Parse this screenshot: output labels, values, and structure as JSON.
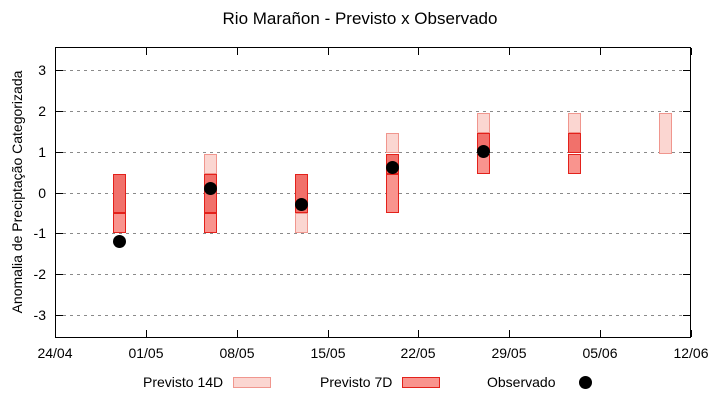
{
  "chart_data": {
    "type": "range-bar + scatter",
    "title": "Rio Marañon - Previsto x Observado",
    "ylabel": "Anomalia de Preciptação Categorizada",
    "xlabel": "",
    "ylim": [
      -3.55,
      3.55
    ],
    "yticks": [
      3,
      2,
      1,
      0,
      -1,
      -2,
      -3
    ],
    "x_span_days": 49,
    "xticks": [
      {
        "day": 0,
        "label": "24/04"
      },
      {
        "day": 7,
        "label": "01/05"
      },
      {
        "day": 14,
        "label": "08/05"
      },
      {
        "day": 21,
        "label": "15/05"
      },
      {
        "day": 28,
        "label": "22/05"
      },
      {
        "day": 35,
        "label": "29/05"
      },
      {
        "day": 42,
        "label": "05/06"
      },
      {
        "day": 49,
        "label": "12/06"
      }
    ],
    "grid": {
      "horizontal": true,
      "style": "dashed",
      "color": "#8a8a8a"
    },
    "bars": [
      {
        "label": "29/04",
        "day": 5,
        "previsto_14d": [
          -0.5,
          0.45
        ],
        "previsto_7d": [
          -1.0,
          0.45
        ],
        "observado": -1.2,
        "segments": [
          {
            "from": -0.5,
            "to": 0.45,
            "shade": "overlap"
          },
          {
            "from": -1.0,
            "to": -0.5,
            "shade": "p7"
          }
        ]
      },
      {
        "label": "06/05",
        "day": 12,
        "previsto_14d": [
          -0.5,
          0.95
        ],
        "previsto_7d": [
          -1.0,
          0.45
        ],
        "observado": 0.1,
        "segments": [
          {
            "from": 0.45,
            "to": 0.95,
            "shade": "p14"
          },
          {
            "from": -0.5,
            "to": 0.45,
            "shade": "overlap"
          },
          {
            "from": -1.0,
            "to": -0.5,
            "shade": "p7"
          }
        ]
      },
      {
        "label": "13/05",
        "day": 19,
        "previsto_14d": [
          -1.0,
          0.45
        ],
        "previsto_7d": [
          -0.5,
          0.45
        ],
        "observado": -0.3,
        "segments": [
          {
            "from": -0.5,
            "to": 0.45,
            "shade": "overlap"
          },
          {
            "from": -1.0,
            "to": -0.5,
            "shade": "p14"
          }
        ]
      },
      {
        "label": "20/05",
        "day": 26,
        "previsto_14d": [
          0.45,
          1.45
        ],
        "previsto_7d": [
          -0.5,
          0.95
        ],
        "observado": 0.6,
        "segments": [
          {
            "from": 0.95,
            "to": 1.45,
            "shade": "p14"
          },
          {
            "from": 0.45,
            "to": 0.95,
            "shade": "overlap"
          },
          {
            "from": -0.5,
            "to": 0.45,
            "shade": "p7"
          }
        ]
      },
      {
        "label": "27/05",
        "day": 33,
        "previsto_14d": [
          0.95,
          1.95
        ],
        "previsto_7d": [
          0.45,
          1.45
        ],
        "observado": 1.0,
        "segments": [
          {
            "from": 1.45,
            "to": 1.95,
            "shade": "p14"
          },
          {
            "from": 0.95,
            "to": 1.45,
            "shade": "overlap"
          },
          {
            "from": 0.45,
            "to": 0.95,
            "shade": "p7"
          }
        ]
      },
      {
        "label": "03/06",
        "day": 40,
        "previsto_14d": [
          0.95,
          1.95
        ],
        "previsto_7d": [
          0.45,
          1.45
        ],
        "observado": null,
        "segments": [
          {
            "from": 1.45,
            "to": 1.95,
            "shade": "p14"
          },
          {
            "from": 0.95,
            "to": 1.45,
            "shade": "overlap"
          },
          {
            "from": 0.45,
            "to": 0.95,
            "shade": "p7"
          }
        ]
      },
      {
        "label": "10/06",
        "day": 47,
        "previsto_14d": [
          0.95,
          1.95
        ],
        "previsto_7d": null,
        "observado": null,
        "segments": [
          {
            "from": 0.95,
            "to": 1.95,
            "shade": "p14"
          }
        ]
      }
    ],
    "legend": {
      "position": "bottom-center",
      "items": [
        {
          "label": "Previsto 14D",
          "marker": "box",
          "shade": "p14"
        },
        {
          "label": "Previsto 7D",
          "marker": "box",
          "shade": "p7"
        },
        {
          "label": "Observado",
          "marker": "dot",
          "color": "#000000"
        }
      ]
    },
    "colors": {
      "p14_fill": "#fbd6d1",
      "p14_border": "#f0968e",
      "p7_fill": "#f9948e",
      "p7_border": "#e3211b",
      "overlap_fill": "#f1716b",
      "overlap_border": "#e3211b",
      "observado": "#000000",
      "axis": "#000000",
      "grid": "#8a8a8a"
    }
  }
}
